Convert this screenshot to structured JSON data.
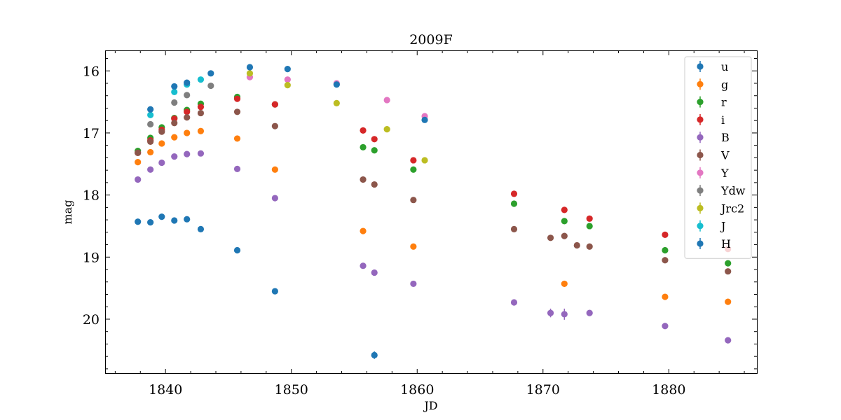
{
  "chart_data": {
    "type": "scatter",
    "title": "2009F",
    "xlabel": "JD",
    "ylabel": "mag",
    "xlim": [
      1835.2,
      1887.0
    ],
    "ylim": [
      20.88,
      15.67
    ],
    "y_inverted": true,
    "xticks": [
      1840,
      1850,
      1860,
      1870,
      1880
    ],
    "yticks": [
      16,
      17,
      18,
      19,
      20
    ],
    "legend_position": "top-right",
    "series": [
      {
        "name": "u",
        "color": "#1f77b4",
        "x": [
          1837.8,
          1838.8,
          1839.7,
          1840.7,
          1841.7,
          1842.8,
          1845.7,
          1848.7,
          1856.6
        ],
        "y": [
          18.43,
          18.44,
          18.35,
          18.41,
          18.39,
          18.55,
          18.89,
          19.55,
          20.58
        ],
        "err": [
          0,
          0,
          0,
          0,
          0,
          0,
          0,
          0,
          0.06
        ]
      },
      {
        "name": "g",
        "color": "#ff7f0e",
        "x": [
          1837.8,
          1838.8,
          1839.7,
          1840.7,
          1841.7,
          1842.8,
          1845.7,
          1848.7,
          1855.7,
          1859.7,
          1871.7,
          1879.7,
          1884.7
        ],
        "y": [
          17.47,
          17.31,
          17.17,
          17.07,
          17.0,
          16.97,
          17.09,
          17.59,
          18.58,
          18.83,
          19.43,
          19.64,
          19.72
        ],
        "err": [
          0,
          0,
          0,
          0,
          0,
          0,
          0,
          0,
          0,
          0,
          0.05,
          0,
          0
        ]
      },
      {
        "name": "r",
        "color": "#2ca02c",
        "x": [
          1837.8,
          1838.8,
          1839.7,
          1840.7,
          1841.7,
          1842.8,
          1845.7,
          1848.7,
          1855.7,
          1856.6,
          1859.7,
          1867.7,
          1871.7,
          1873.7,
          1879.7,
          1884.7
        ],
        "y": [
          17.29,
          17.08,
          16.91,
          16.76,
          16.63,
          16.53,
          16.42,
          16.54,
          17.23,
          17.28,
          17.59,
          18.14,
          18.42,
          18.5,
          18.89,
          19.1
        ],
        "err": [
          0,
          0,
          0,
          0,
          0,
          0,
          0,
          0,
          0,
          0,
          0,
          0,
          0,
          0,
          0,
          0
        ]
      },
      {
        "name": "i",
        "color": "#d62728",
        "x": [
          1837.8,
          1838.8,
          1839.7,
          1840.7,
          1841.7,
          1842.8,
          1845.7,
          1848.7,
          1855.7,
          1856.6,
          1859.7,
          1867.7,
          1871.7,
          1873.7,
          1879.7,
          1884.7
        ],
        "y": [
          17.32,
          17.12,
          16.95,
          16.77,
          16.66,
          16.58,
          16.45,
          16.54,
          16.96,
          17.1,
          17.44,
          17.98,
          18.24,
          18.38,
          18.64,
          18.87
        ],
        "err": [
          0,
          0,
          0,
          0,
          0,
          0,
          0,
          0,
          0,
          0,
          0,
          0,
          0,
          0,
          0,
          0
        ]
      },
      {
        "name": "B",
        "color": "#9467bd",
        "x": [
          1837.8,
          1838.8,
          1839.7,
          1840.7,
          1841.7,
          1842.8,
          1845.7,
          1848.7,
          1855.7,
          1856.6,
          1859.7,
          1867.7,
          1870.6,
          1871.7,
          1873.7,
          1879.7,
          1884.7
        ],
        "y": [
          17.75,
          17.59,
          17.48,
          17.38,
          17.34,
          17.33,
          17.58,
          18.05,
          19.14,
          19.25,
          19.43,
          19.73,
          19.9,
          19.92,
          19.9,
          20.11,
          20.34
        ],
        "err": [
          0,
          0,
          0,
          0,
          0,
          0,
          0,
          0,
          0,
          0,
          0,
          0.05,
          0.07,
          0.09,
          0,
          0,
          0
        ]
      },
      {
        "name": "V",
        "color": "#8c564b",
        "x": [
          1837.8,
          1838.8,
          1839.7,
          1840.7,
          1841.7,
          1842.8,
          1845.7,
          1848.7,
          1855.7,
          1856.6,
          1859.7,
          1867.7,
          1870.6,
          1871.7,
          1872.7,
          1873.7,
          1879.7,
          1884.7
        ],
        "y": [
          17.32,
          17.14,
          16.98,
          16.84,
          16.75,
          16.68,
          16.66,
          16.89,
          17.75,
          17.83,
          18.08,
          18.55,
          18.69,
          18.66,
          18.81,
          18.83,
          19.05,
          19.23
        ],
        "err": [
          0,
          0,
          0,
          0,
          0,
          0,
          0,
          0,
          0,
          0,
          0,
          0,
          0,
          0,
          0,
          0,
          0,
          0
        ]
      },
      {
        "name": "Y",
        "color": "#e377c2",
        "x": [
          1846.7,
          1849.7,
          1853.6,
          1857.6,
          1860.6
        ],
        "y": [
          16.1,
          16.14,
          16.2,
          16.47,
          16.73
        ],
        "err": [
          0,
          0,
          0,
          0.03,
          0
        ]
      },
      {
        "name": "Ydw",
        "color": "#7f7f7f",
        "x": [
          1838.8,
          1840.7,
          1841.7,
          1843.6
        ],
        "y": [
          16.86,
          16.51,
          16.39,
          16.24
        ],
        "err": [
          0,
          0,
          0,
          0
        ]
      },
      {
        "name": "Jrc2",
        "color": "#bcbd22",
        "x": [
          1846.7,
          1849.7,
          1853.6,
          1857.6,
          1860.6
        ],
        "y": [
          16.04,
          16.23,
          16.52,
          16.94,
          17.44
        ],
        "err": [
          0,
          0.02,
          0.03,
          0.05,
          0.05
        ]
      },
      {
        "name": "J",
        "color": "#17becf",
        "x": [
          1838.8,
          1840.7,
          1841.7,
          1842.8
        ],
        "y": [
          16.71,
          16.34,
          16.22,
          16.14
        ],
        "err": [
          0,
          0,
          0,
          0
        ]
      },
      {
        "name": "H",
        "color": "#1f77b4",
        "x": [
          1838.8,
          1840.7,
          1841.7,
          1843.6,
          1846.7,
          1849.7,
          1853.6,
          1860.6
        ],
        "y": [
          16.62,
          16.25,
          16.19,
          16.04,
          15.94,
          15.97,
          16.22,
          16.79
        ],
        "err": [
          0,
          0,
          0,
          0,
          0,
          0,
          0,
          0
        ]
      }
    ]
  }
}
